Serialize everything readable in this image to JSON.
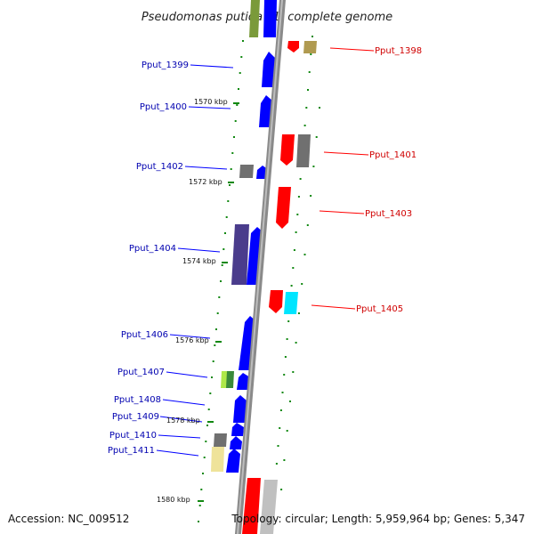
{
  "title": "Pseudomonas putida F1, complete genome",
  "accession": "Accession: NC_009512",
  "topology": "Topology: circular; Length: 5,959,964 bp; Genes: 5,347",
  "kbp_ticks": [
    "1570 kbp",
    "1572 kbp",
    "1574 kbp",
    "1576 kbp",
    "1578 kbp",
    "1580 kbp"
  ],
  "left_labels": [
    "Pput_1399",
    "Pput_1400",
    "Pput_1402",
    "Pput_1404",
    "Pput_1406",
    "Pput_1407",
    "Pput_1408",
    "Pput_1409",
    "Pput_1410",
    "Pput_1411"
  ],
  "right_labels": [
    "Pput_1398",
    "Pput_1401",
    "Pput_1403",
    "Pput_1405"
  ],
  "colors": {
    "forward_gene": "#0000ff",
    "reverse_gene": "#ff0000",
    "left_label": "#0000b0",
    "right_label": "#d00000",
    "ruler_dots": "#118811",
    "backbone": "#888888",
    "gray_gene": "#707070",
    "olive_gene": "#b09a50",
    "purple_gene": "#4a3c8c",
    "cyan_gene": "#00e5ff",
    "green_gene": "#4caf50",
    "khaki_gene": "#efe39a"
  }
}
